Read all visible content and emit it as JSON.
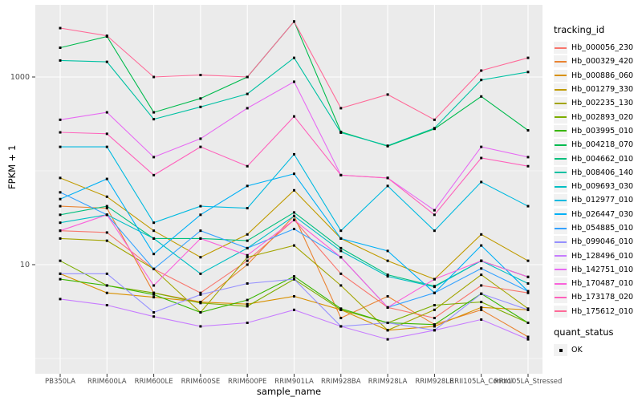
{
  "chart_data": {
    "type": "line",
    "xlabel": "sample_name",
    "ylabel": "FPKM + 1",
    "y_scale": "log10",
    "y_major_ticks": [
      10,
      1000
    ],
    "y_minor_gridlines": [
      1,
      100
    ],
    "ylim_log": [
      -0.16,
      3.77
    ],
    "grid": true,
    "panel_background": "#ebebeb",
    "gridline_color": "#ffffff",
    "point_color": "#000000",
    "legend_position": "right",
    "legend_title": "tracking_id",
    "categories": [
      "PB350LA",
      "RRIM600LA",
      "RRIM600LE",
      "RRIM600SE",
      "RRIM600PE",
      "RRIM901LA",
      "RRIM928BA",
      "RRIM928LA",
      "RRIM928LE",
      "RRII105LA_Control",
      "RRII105LA_Stressed"
    ],
    "series": [
      {
        "name": "Hb_000056_230",
        "color": "#F8766D",
        "values": [
          23,
          22,
          9,
          5,
          11,
          30,
          8,
          3.5,
          2.7,
          6,
          5
        ]
      },
      {
        "name": "Hb_000329_420",
        "color": "#EA8331",
        "values": [
          42,
          40,
          5,
          4,
          10,
          33,
          2.7,
          4.6,
          2.3,
          3.3,
          1.7
        ]
      },
      {
        "name": "Hb_000886_060",
        "color": "#D89000",
        "values": [
          8,
          5,
          4.5,
          4,
          3.8,
          4.6,
          3.3,
          2.0,
          2.2,
          3.5,
          3.3
        ]
      },
      {
        "name": "Hb_001279_330",
        "color": "#C09B00",
        "values": [
          84,
          53,
          23,
          12,
          21,
          62,
          19,
          11,
          7,
          21,
          11
        ]
      },
      {
        "name": "Hb_002235_130",
        "color": "#A3A500",
        "values": [
          19,
          18,
          9,
          3.1,
          12,
          16,
          6,
          2,
          3.3,
          7.8,
          3.4
        ]
      },
      {
        "name": "Hb_002893_020",
        "color": "#7CAE00",
        "values": [
          11,
          6,
          5,
          3.9,
          3.6,
          7,
          3.3,
          2.4,
          3.7,
          4,
          2.4
        ]
      },
      {
        "name": "Hb_003995_010",
        "color": "#39B600",
        "values": [
          7,
          6,
          4.8,
          3.1,
          4.2,
          7.5,
          3.4,
          2.4,
          2.3,
          4.9,
          2.4
        ]
      },
      {
        "name": "Hb_004218_070",
        "color": "#00BB4E",
        "values": [
          2050,
          2700,
          420,
          590,
          1000,
          3900,
          260,
          183,
          280,
          620,
          270
        ]
      },
      {
        "name": "Hb_004662_010",
        "color": "#00BF7D",
        "values": [
          34,
          42,
          19,
          19,
          18,
          36,
          15,
          7.8,
          5.9,
          11,
          7.4
        ]
      },
      {
        "name": "Hb_008406_140",
        "color": "#00C1A3",
        "values": [
          1500,
          1450,
          355,
          480,
          660,
          1600,
          255,
          185,
          285,
          930,
          1130
        ]
      },
      {
        "name": "Hb_009693_030",
        "color": "#00BFC4",
        "values": [
          28,
          34,
          19,
          8,
          15,
          33,
          14,
          7.5,
          5.8,
          11,
          6.3
        ]
      },
      {
        "name": "Hb_012977_010",
        "color": "#00BAE0",
        "values": [
          180,
          180,
          28,
          42,
          40,
          150,
          23,
          69,
          23,
          76,
          42
        ]
      },
      {
        "name": "Hb_026447_030",
        "color": "#00B0F6",
        "values": [
          50,
          82,
          13,
          34,
          69,
          93,
          19,
          14,
          5,
          16,
          5.2
        ]
      },
      {
        "name": "Hb_054885_010",
        "color": "#35A2FF",
        "values": [
          59,
          34,
          9,
          23,
          15,
          24,
          12,
          3.5,
          5,
          9.1,
          5.2
        ]
      },
      {
        "name": "Hb_099046_010",
        "color": "#9590FF",
        "values": [
          8,
          8,
          3.1,
          4.8,
          6.3,
          7,
          2.2,
          2.4,
          2,
          4.9,
          3.3
        ]
      },
      {
        "name": "Hb_128496_010",
        "color": "#C77CFF",
        "values": [
          4.3,
          3.7,
          2.8,
          2.2,
          2.4,
          3.3,
          2.2,
          1.6,
          2,
          2.6,
          1.6
        ]
      },
      {
        "name": "Hb_142751_010",
        "color": "#E76BF3",
        "values": [
          350,
          420,
          140,
          220,
          465,
          890,
          90,
          84,
          38,
          180,
          140
        ]
      },
      {
        "name": "Hb_170487_010",
        "color": "#FA62DB",
        "values": [
          23,
          34,
          6,
          19,
          12.6,
          30,
          12,
          3.5,
          7,
          11,
          7.4
        ]
      },
      {
        "name": "Hb_173178_020",
        "color": "#FF62BC",
        "values": [
          257,
          248,
          90,
          180,
          112,
          380,
          90,
          84,
          34,
          137,
          112
        ]
      },
      {
        "name": "Hb_175612_010",
        "color": "#FF6A98",
        "values": [
          3320,
          2750,
          1000,
          1050,
          1000,
          3900,
          465,
          650,
          350,
          1170,
          1600
        ]
      }
    ],
    "quant_legend": {
      "title": "quant_status",
      "items": [
        {
          "label": "OK",
          "shape": "square",
          "color": "#000000"
        }
      ]
    }
  }
}
